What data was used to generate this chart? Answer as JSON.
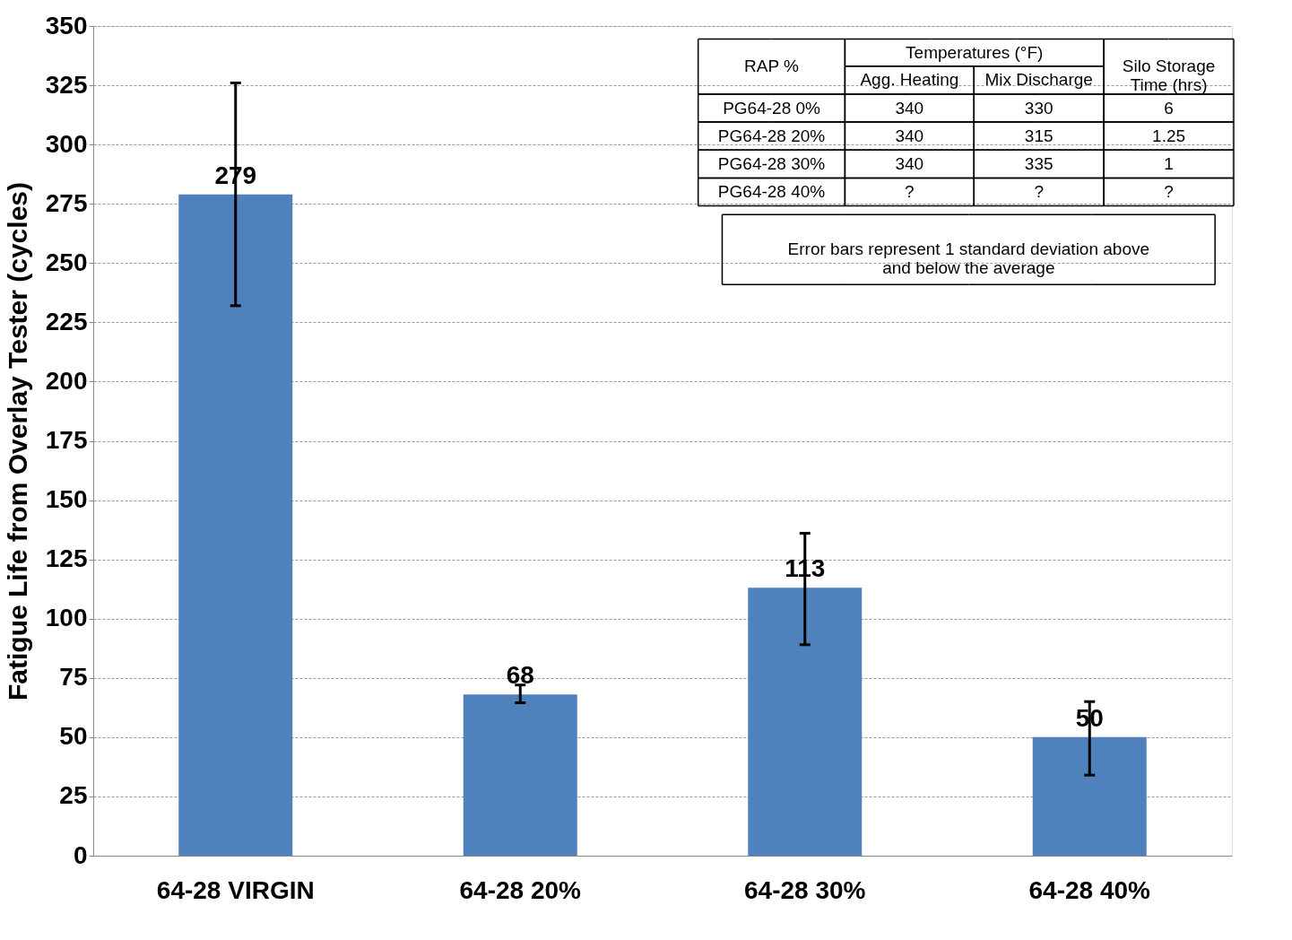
{
  "chart_data": {
    "type": "bar",
    "ylabel": "Fatigue Life from Overlay Tester (cycles)",
    "categories": [
      "64-28 VIRGIN",
      "64-28 20%",
      "64-28 30%",
      "64-28 40%"
    ],
    "values": [
      279,
      68,
      113,
      50
    ],
    "errors": [
      [
        232,
        326
      ],
      [
        64.5,
        72
      ],
      [
        89,
        136
      ],
      [
        34,
        65
      ]
    ],
    "color": "#4f81bd",
    "ylim": [
      0,
      350
    ],
    "yticks": [
      0,
      25,
      50,
      75,
      100,
      125,
      150,
      175,
      200,
      225,
      250,
      275,
      300,
      325,
      350
    ],
    "grid": "y",
    "data_labels": true,
    "annotations": [
      "RAP %",
      "Temperatures (°F)",
      "Silo Storage\nTime (hrs)",
      "Agg. Heating",
      "Mix Discharge",
      "PG64-28 0%",
      "340",
      "330",
      "6",
      "PG64-28 20%",
      "340",
      "315",
      "1.25",
      "PG64-28 30%",
      "340",
      "335",
      "1",
      "PG64-28 40%",
      "?",
      "?",
      "?",
      "Error bars represent  1 standard  deviation above\nand below the average"
    ]
  }
}
